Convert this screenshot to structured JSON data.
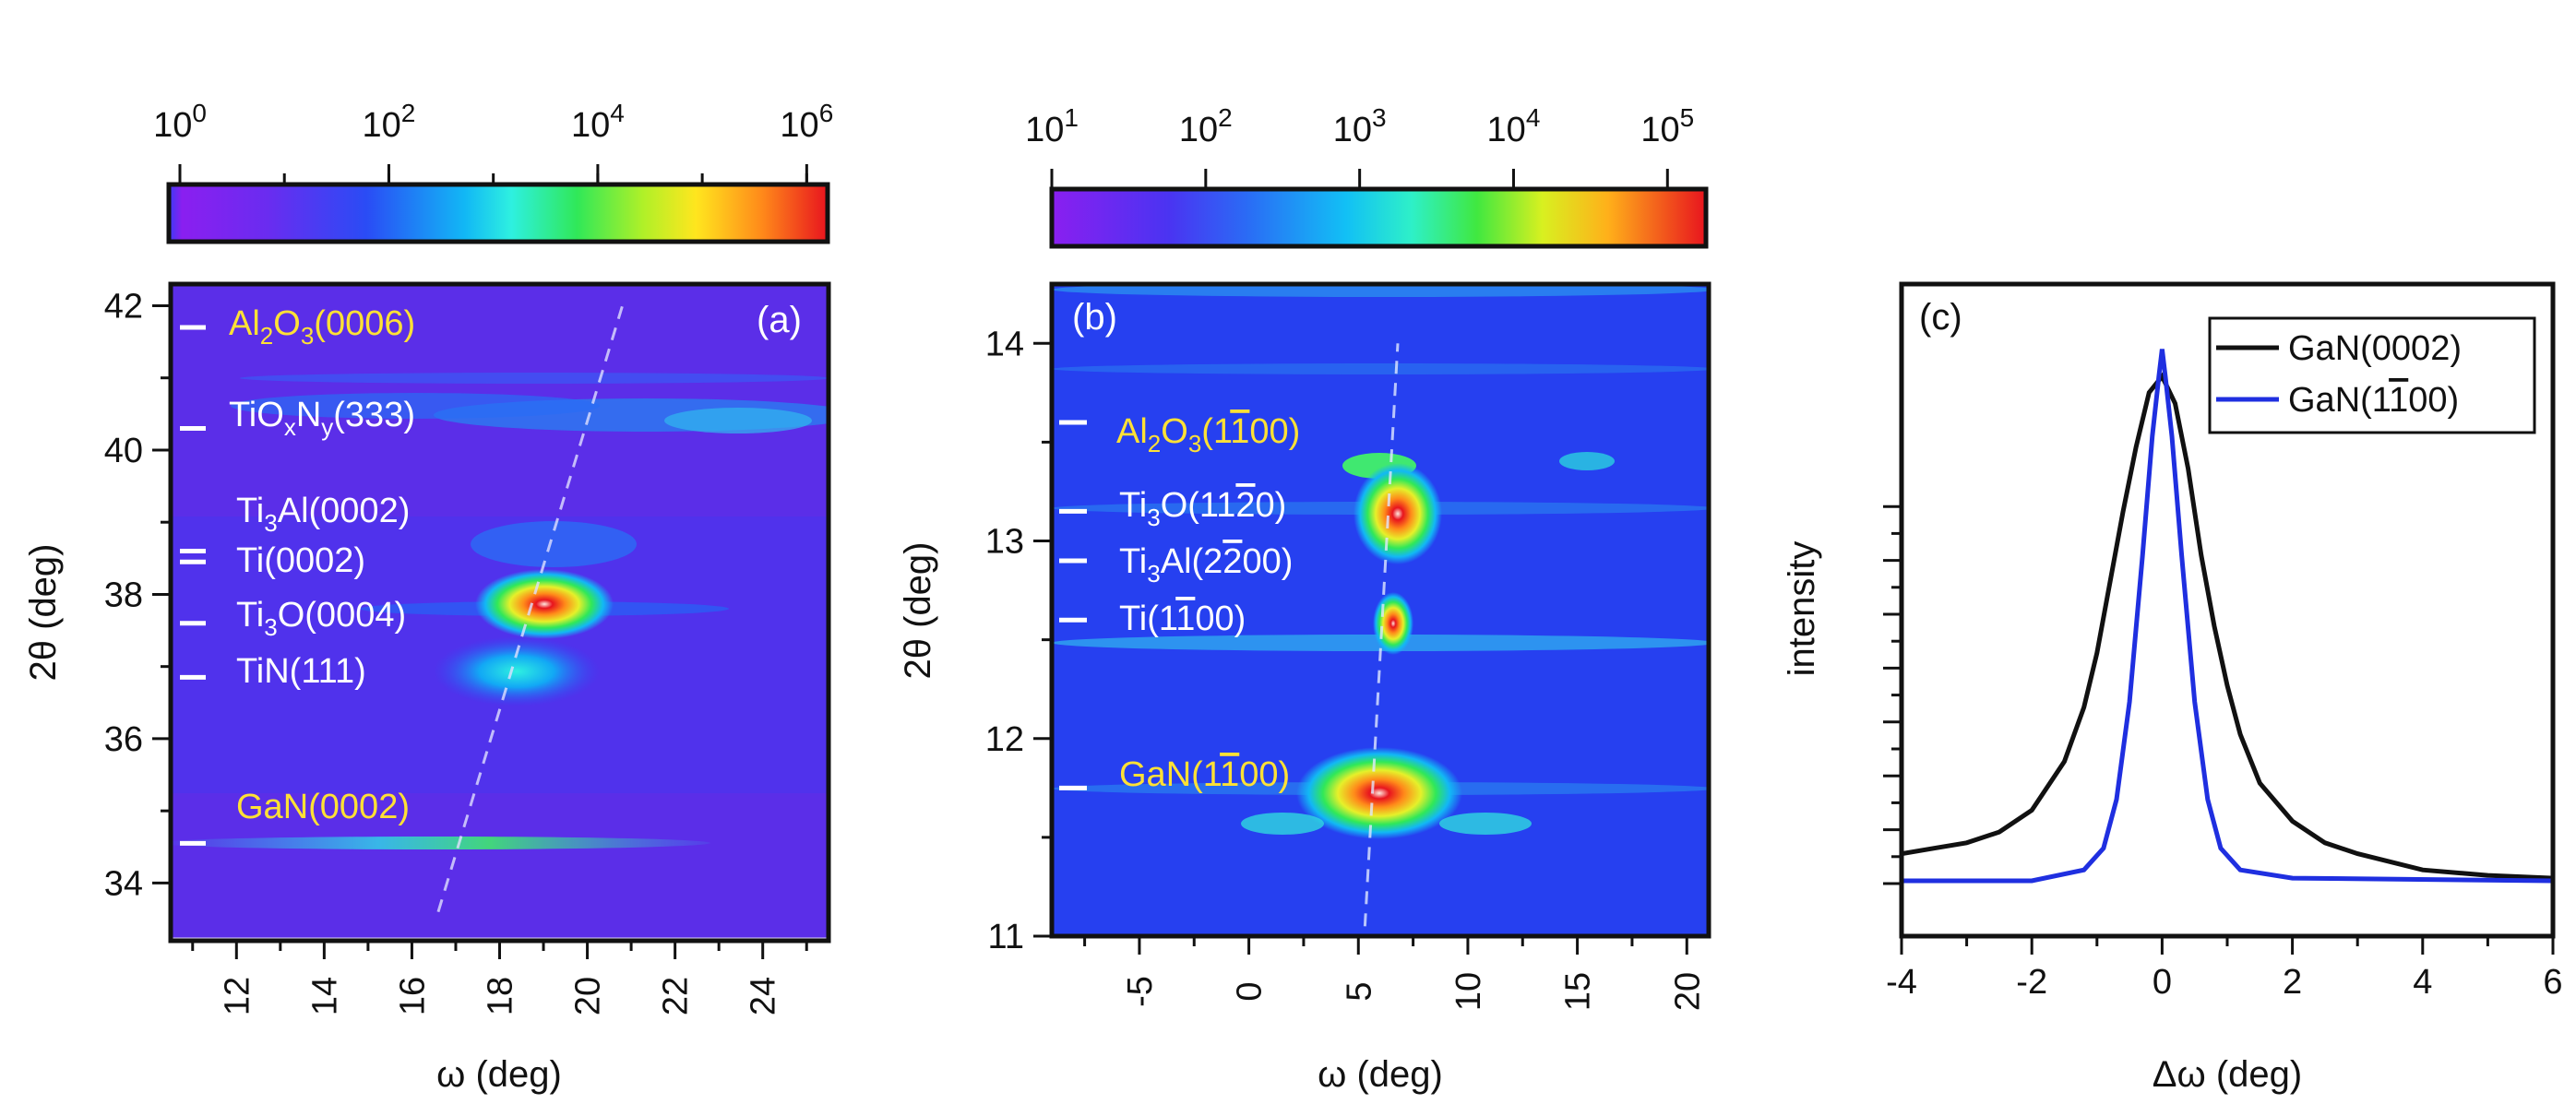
{
  "colors": {
    "map_background": "#5b2ee8",
    "annotation_white": "#ffffff",
    "annotation_yellow": "#ffe135",
    "series_black": "#111111",
    "series_blue": "#1f2fe0"
  },
  "chart_data": [
    {
      "id": "a",
      "type": "heatmap",
      "panel_label": "(a)",
      "xlabel": "ω (deg)",
      "ylabel": "2θ (deg)",
      "xlim": [
        10.5,
        25.5
      ],
      "ylim": [
        33.2,
        42.3
      ],
      "xticks": [
        12,
        14,
        16,
        18,
        20,
        22,
        24
      ],
      "yticks": [
        34,
        36,
        38,
        40,
        42
      ],
      "colorbar": {
        "scale": "log",
        "range": [
          1,
          1000000
        ],
        "ticks": [
          {
            "base": "10",
            "exp": "0",
            "log": 0
          },
          {
            "base": "10",
            "exp": "2",
            "log": 2
          },
          {
            "base": "10",
            "exp": "4",
            "log": 4
          },
          {
            "base": "10",
            "exp": "6",
            "log": 6
          }
        ]
      },
      "peaks": [
        {
          "label": "Al2O3(0006)",
          "pre": "Al",
          "sub1": "2",
          "mid": "O",
          "sub2": "3",
          "post": "(0006)",
          "color": "yellow",
          "two_theta": 41.7
        },
        {
          "label": "TiOxNy(333)",
          "pre": "TiO",
          "sub1": "x",
          "mid": "N",
          "sub2": "y",
          "post": "(333)",
          "color": "white",
          "two_theta": 40.3
        },
        {
          "label": "Ti3Al(0002)",
          "pre": "Ti",
          "sub1": "3",
          "mid": "Al(0002)",
          "sub2": "",
          "post": "",
          "color": "white",
          "two_theta": 38.6
        },
        {
          "label": "Ti(0002)",
          "pre": "Ti(0002)",
          "sub1": "",
          "mid": "",
          "sub2": "",
          "post": "",
          "color": "white",
          "two_theta": 38.45
        },
        {
          "label": "Ti3O(0004)",
          "pre": "Ti",
          "sub1": "3",
          "mid": "O(0004)",
          "sub2": "",
          "post": "",
          "color": "white",
          "two_theta": 37.6
        },
        {
          "label": "TiN(111)",
          "pre": "TiN(111)",
          "sub1": "",
          "mid": "",
          "sub2": "",
          "post": "",
          "color": "white",
          "two_theta": 36.85
        },
        {
          "label": "GaN(0002)",
          "pre": "GaN(0002)",
          "sub1": "",
          "mid": "",
          "sub2": "",
          "post": "",
          "color": "yellow",
          "two_theta": 34.55
        }
      ]
    },
    {
      "id": "b",
      "type": "heatmap",
      "panel_label": "(b)",
      "xlabel": "ω (deg)",
      "ylabel": "2θ (deg)",
      "xlim": [
        -9,
        21
      ],
      "ylim": [
        11,
        14.3
      ],
      "xticks": [
        -5,
        0,
        5,
        10,
        15,
        20
      ],
      "yticks": [
        11,
        12,
        13,
        14
      ],
      "colorbar": {
        "scale": "log",
        "range": [
          10,
          120000
        ],
        "ticks": [
          {
            "base": "10",
            "exp": "1",
            "log": 1
          },
          {
            "base": "10",
            "exp": "2",
            "log": 2
          },
          {
            "base": "10",
            "exp": "3",
            "log": 3
          },
          {
            "base": "10",
            "exp": "4",
            "log": 4
          },
          {
            "base": "10",
            "exp": "5",
            "log": 5
          }
        ]
      },
      "peaks": [
        {
          "label": "Al2O3(1-100)",
          "pre": "Al",
          "sub1": "2",
          "mid": "O",
          "sub2": "3",
          "post": "(1",
          "bar": "1",
          "post2": "00)",
          "color": "yellow",
          "two_theta": 13.6
        },
        {
          "label": "Ti3O(11-20)",
          "pre": "Ti",
          "sub1": "3",
          "mid": "O(11",
          "sub2": "",
          "post": "",
          "bar": "2",
          "post2": "0)",
          "color": "white",
          "two_theta": 13.15
        },
        {
          "label": "Ti3Al(2-200)",
          "pre": "Ti",
          "sub1": "3",
          "mid": "Al(2",
          "sub2": "",
          "post": "",
          "bar": "2",
          "post2": "00)",
          "color": "white",
          "two_theta": 12.9
        },
        {
          "label": "Ti(1-100)",
          "pre": "Ti(1",
          "sub1": "",
          "mid": "",
          "sub2": "",
          "post": "",
          "bar": "1",
          "post2": "00)",
          "color": "white",
          "two_theta": 12.6
        },
        {
          "label": "GaN(1-100)",
          "pre": "GaN(1",
          "sub1": "",
          "mid": "",
          "sub2": "",
          "post": "",
          "bar": "1",
          "post2": "00)",
          "color": "yellow",
          "two_theta": 11.75
        }
      ]
    },
    {
      "id": "c",
      "type": "line",
      "panel_label": "(c)",
      "xlabel": "Δω (deg)",
      "ylabel": "intensity",
      "xlim": [
        -4,
        6
      ],
      "ylim": [
        0,
        1.1
      ],
      "xticks": [
        -4,
        -2,
        0,
        2,
        4,
        6
      ],
      "legend_position": "top-right",
      "series": [
        {
          "name": "GaN(0002)",
          "pre": "GaN(0002)",
          "bar": "",
          "post": "",
          "color": "black",
          "x": [
            -4.0,
            -3.5,
            -3.0,
            -2.5,
            -2.0,
            -1.5,
            -1.2,
            -1.0,
            -0.8,
            -0.6,
            -0.4,
            -0.2,
            0.0,
            0.2,
            0.4,
            0.6,
            0.8,
            1.0,
            1.2,
            1.5,
            2.0,
            2.5,
            3.0,
            4.0,
            5.0,
            6.0
          ],
          "y": [
            0.05,
            0.06,
            0.07,
            0.09,
            0.13,
            0.22,
            0.32,
            0.42,
            0.55,
            0.68,
            0.8,
            0.9,
            0.93,
            0.88,
            0.76,
            0.6,
            0.47,
            0.36,
            0.27,
            0.18,
            0.11,
            0.07,
            0.05,
            0.02,
            0.01,
            0.005
          ]
        },
        {
          "name": "GaN(1-100)",
          "pre": "GaN(1",
          "bar": "1",
          "post": "00)",
          "color": "blue",
          "x": [
            -4.0,
            -2.0,
            -1.2,
            -0.9,
            -0.7,
            -0.5,
            -0.3,
            -0.15,
            -0.05,
            0.0,
            0.05,
            0.15,
            0.3,
            0.5,
            0.7,
            0.9,
            1.2,
            2.0,
            6.0
          ],
          "y": [
            0.0,
            0.0,
            0.02,
            0.06,
            0.15,
            0.33,
            0.6,
            0.82,
            0.93,
            0.98,
            0.93,
            0.82,
            0.6,
            0.33,
            0.15,
            0.06,
            0.02,
            0.005,
            0.0
          ]
        }
      ]
    }
  ]
}
